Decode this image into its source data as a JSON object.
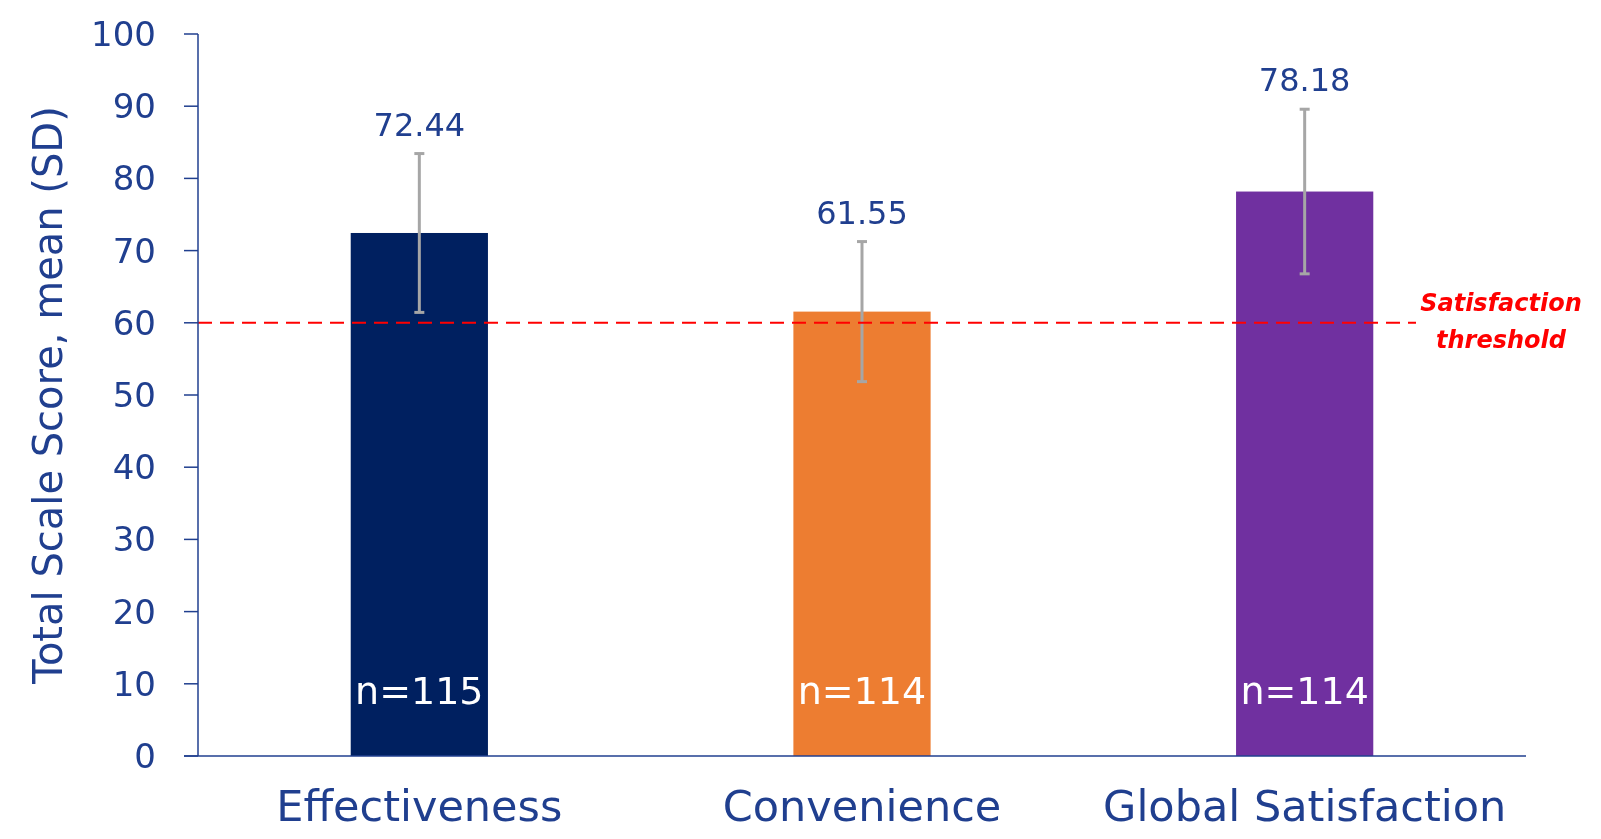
{
  "chart_data": {
    "type": "bar",
    "ylabel": "Total Scale Score, mean (SD)",
    "categories": [
      "Effectiveness",
      "Convenience",
      "Global Satisfaction"
    ],
    "values": [
      72.44,
      61.55,
      78.18
    ],
    "colors": [
      "#002060",
      "#ed7d31",
      "#7030a0"
    ],
    "errors": [
      11,
      9.7,
      11.4
    ],
    "data_labels": true,
    "ylim": [
      0,
      100
    ],
    "yticks": [
      0,
      10,
      20,
      30,
      40,
      50,
      60,
      70,
      80,
      90,
      100
    ],
    "ref_lines": [
      {
        "axis": "y",
        "value": 60,
        "label": "Satisfaction threshold",
        "color": "#ff0000",
        "line_style": "dashed"
      }
    ],
    "annotations": [
      "n=115",
      "n=114",
      "n=114"
    ]
  }
}
